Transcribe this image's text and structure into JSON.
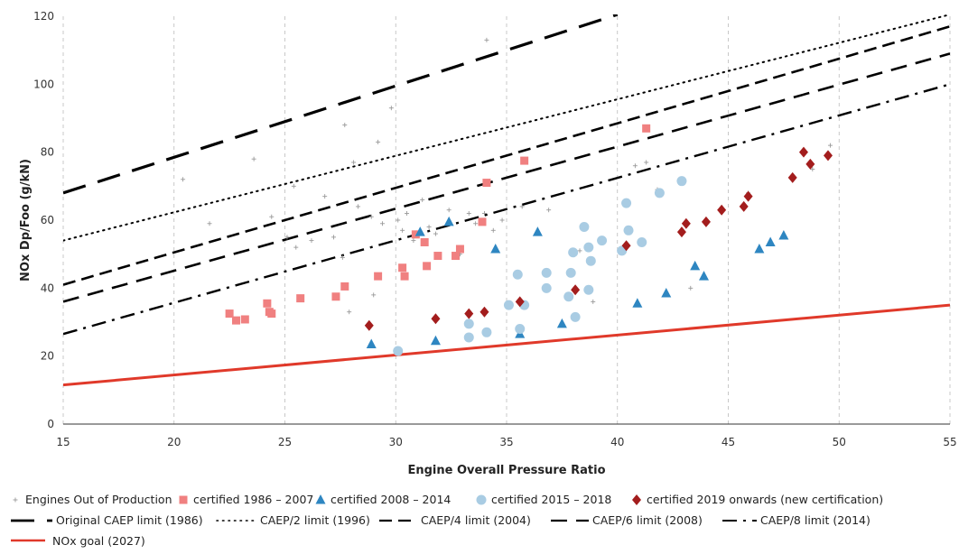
{
  "chart_data": {
    "type": "scatter",
    "xlabel": "Engine Overall Pressure Ratio",
    "ylabel": "NOx Dp/Foo (g/kN)",
    "xlim": [
      15,
      55
    ],
    "ylim": [
      0,
      120
    ],
    "x_ticks": [
      15,
      20,
      25,
      30,
      35,
      40,
      45,
      50,
      55
    ],
    "y_ticks": [
      0,
      20,
      40,
      60,
      80,
      100,
      120
    ],
    "grid": "vertical dashed",
    "legend_position": "bottom",
    "scatter_series": [
      {
        "name": "Engines Out of Production",
        "marker": "plus",
        "color": "#999999",
        "points": [
          [
            20.4,
            72
          ],
          [
            21.6,
            59
          ],
          [
            23.6,
            78
          ],
          [
            24.4,
            61
          ],
          [
            25.4,
            70
          ],
          [
            25.1,
            55
          ],
          [
            25.5,
            52
          ],
          [
            26.2,
            54
          ],
          [
            26.8,
            67
          ],
          [
            27.2,
            55
          ],
          [
            27.6,
            49
          ],
          [
            27.7,
            88
          ],
          [
            27.9,
            33
          ],
          [
            28.1,
            77
          ],
          [
            28.3,
            64
          ],
          [
            28.9,
            61
          ],
          [
            29,
            38
          ],
          [
            29.2,
            83
          ],
          [
            29.4,
            59
          ],
          [
            29.8,
            93
          ],
          [
            30.1,
            60
          ],
          [
            30.3,
            57
          ],
          [
            30.5,
            62
          ],
          [
            30.8,
            54
          ],
          [
            31.2,
            66
          ],
          [
            31.5,
            58
          ],
          [
            31.8,
            56
          ],
          [
            32.4,
            63
          ],
          [
            32.9,
            50
          ],
          [
            33.3,
            62
          ],
          [
            33.6,
            59
          ],
          [
            34,
            62
          ],
          [
            34.1,
            113
          ],
          [
            34.4,
            57
          ],
          [
            34.8,
            60
          ],
          [
            35.7,
            64
          ],
          [
            36.9,
            63
          ],
          [
            38.3,
            51
          ],
          [
            38.9,
            36
          ],
          [
            40.2,
            51
          ],
          [
            40.8,
            76
          ],
          [
            41.3,
            77
          ],
          [
            41.8,
            69
          ],
          [
            43.3,
            40
          ],
          [
            45.9,
            68
          ],
          [
            48.8,
            75
          ],
          [
            49.6,
            82
          ]
        ]
      },
      {
        "name": "certified 1986 – 2007",
        "marker": "square",
        "color": "#f08080",
        "points": [
          [
            22.5,
            32.5
          ],
          [
            22.8,
            30.5
          ],
          [
            23.2,
            30.8
          ],
          [
            24.2,
            35.5
          ],
          [
            24.3,
            33
          ],
          [
            24.4,
            32.5
          ],
          [
            25.7,
            37
          ],
          [
            27.3,
            37.5
          ],
          [
            27.7,
            40.5
          ],
          [
            29.2,
            43.5
          ],
          [
            30.3,
            46
          ],
          [
            30.4,
            43.5
          ],
          [
            30.9,
            55.8
          ],
          [
            31.3,
            53.5
          ],
          [
            31.4,
            46.5
          ],
          [
            31.9,
            49.5
          ],
          [
            32.7,
            49.5
          ],
          [
            32.9,
            51.5
          ],
          [
            33.9,
            59.5
          ],
          [
            34.1,
            71
          ],
          [
            35.8,
            77.5
          ],
          [
            41.3,
            87
          ]
        ]
      },
      {
        "name": "certified 2008 – 2014",
        "marker": "triangle",
        "color": "#2e86c1",
        "points": [
          [
            28.9,
            23.5
          ],
          [
            31.1,
            56.5
          ],
          [
            31.8,
            24.5
          ],
          [
            32.4,
            59.5
          ],
          [
            34.5,
            51.5
          ],
          [
            35.6,
            26.5
          ],
          [
            36.4,
            56.5
          ],
          [
            37.5,
            29.5
          ],
          [
            40.9,
            35.5
          ],
          [
            42.2,
            38.5
          ],
          [
            43.5,
            46.5
          ],
          [
            43.9,
            43.5
          ],
          [
            46.4,
            51.5
          ],
          [
            46.9,
            53.5
          ],
          [
            47.5,
            55.5
          ]
        ]
      },
      {
        "name": "certified 2015 – 2018",
        "marker": "circle",
        "color": "#a9cce3",
        "points": [
          [
            30.1,
            21.5
          ],
          [
            33.3,
            29.5
          ],
          [
            33.3,
            25.5
          ],
          [
            34.1,
            27
          ],
          [
            35.1,
            35
          ],
          [
            35.5,
            44
          ],
          [
            35.6,
            28
          ],
          [
            35.8,
            35
          ],
          [
            36.8,
            44.5
          ],
          [
            36.8,
            40
          ],
          [
            37.8,
            37.5
          ],
          [
            37.9,
            44.5
          ],
          [
            38,
            50.5
          ],
          [
            38.1,
            31.5
          ],
          [
            38.5,
            58
          ],
          [
            38.7,
            39.5
          ],
          [
            38.7,
            52
          ],
          [
            38.8,
            48
          ],
          [
            39.3,
            54
          ],
          [
            40.2,
            51
          ],
          [
            40.4,
            65
          ],
          [
            40.5,
            57
          ],
          [
            41.1,
            53.5
          ],
          [
            41.9,
            68
          ],
          [
            42.9,
            71.5
          ]
        ]
      },
      {
        "name": "certified 2019 onwards (new certification)",
        "marker": "diamond",
        "color": "#a31d1d",
        "points": [
          [
            28.8,
            29
          ],
          [
            31.8,
            31
          ],
          [
            33.3,
            32.5
          ],
          [
            34.0,
            33
          ],
          [
            35.6,
            36
          ],
          [
            38.1,
            39.5
          ],
          [
            40.4,
            52.5
          ],
          [
            42.9,
            56.5
          ],
          [
            43.1,
            59
          ],
          [
            44.0,
            59.5
          ],
          [
            44.7,
            63
          ],
          [
            45.7,
            64
          ],
          [
            45.9,
            67
          ],
          [
            47.9,
            72.5
          ],
          [
            48.4,
            80
          ],
          [
            48.7,
            76.5
          ],
          [
            49.5,
            79
          ]
        ]
      }
    ],
    "line_series": [
      {
        "name": "Original CAEP limit (1986)",
        "style": "long-dash",
        "color": "#000000",
        "points": [
          [
            15,
            68
          ],
          [
            40,
            120.5
          ]
        ]
      },
      {
        "name": "CAEP/2 limit (1996)",
        "style": "dotted",
        "color": "#000000",
        "points": [
          [
            15,
            54
          ],
          [
            55,
            120.5
          ]
        ]
      },
      {
        "name": "CAEP/4 limit (2004)",
        "style": "dash",
        "color": "#000000",
        "points": [
          [
            15,
            41
          ],
          [
            55,
            117
          ]
        ]
      },
      {
        "name": "CAEP/6 limit (2008)",
        "style": "medium-dash",
        "color": "#000000",
        "points": [
          [
            15,
            36
          ],
          [
            55,
            109
          ]
        ]
      },
      {
        "name": "CAEP/8 limit (2014)",
        "style": "dash-dot",
        "color": "#000000",
        "points": [
          [
            15,
            26.5
          ],
          [
            55,
            100
          ]
        ]
      },
      {
        "name": "NOx goal (2027)",
        "style": "solid",
        "color": "#e0392a",
        "points": [
          [
            15,
            11.5
          ],
          [
            55,
            35
          ]
        ]
      }
    ]
  }
}
